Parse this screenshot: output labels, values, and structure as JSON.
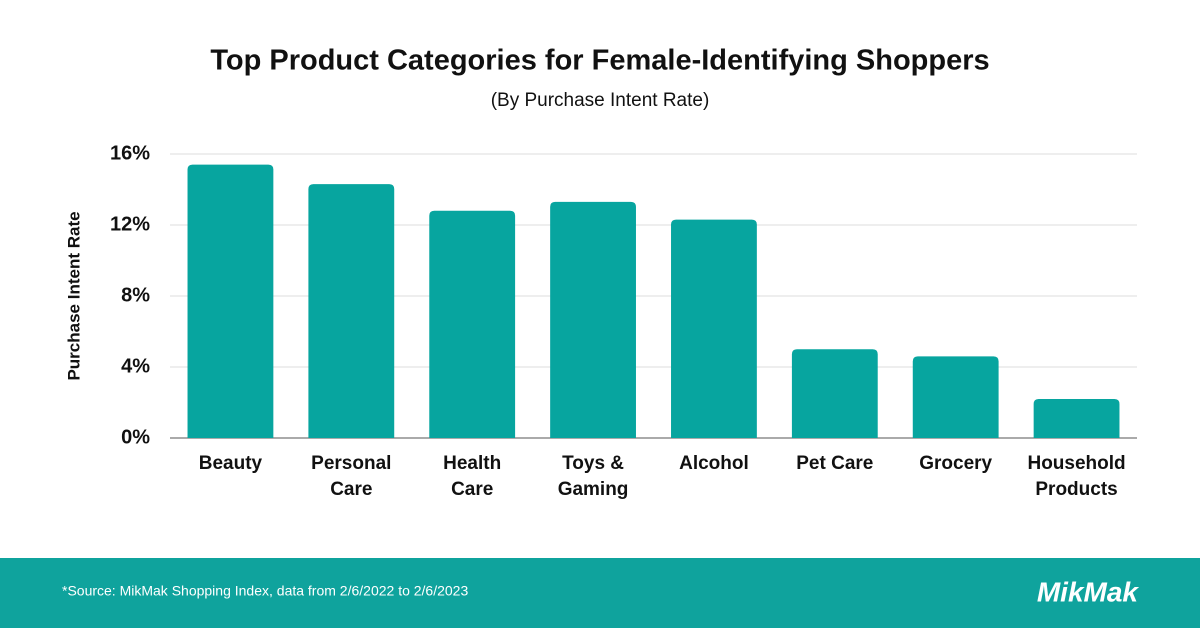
{
  "chart_data": {
    "type": "bar",
    "title": "Top Product Categories for Female-Identifying Shoppers",
    "subtitle": "(By Purchase Intent Rate)",
    "y_label": "Purchase Intent Rate",
    "categories": [
      [
        "Beauty"
      ],
      [
        "Personal",
        "Care"
      ],
      [
        "Health",
        "Care"
      ],
      [
        "Toys &",
        "Gaming"
      ],
      [
        "Alcohol"
      ],
      [
        "Pet Care"
      ],
      [
        "Grocery"
      ],
      [
        "Household",
        "Products"
      ]
    ],
    "values": [
      15.4,
      14.3,
      12.8,
      13.3,
      12.3,
      5.0,
      4.6,
      2.2
    ],
    "color": "#07a59f",
    "ylim": [
      0,
      16
    ],
    "yticks": [
      {
        "value": 0,
        "label": "0%"
      },
      {
        "value": 4,
        "label": "4%"
      },
      {
        "value": 8,
        "label": "8%"
      },
      {
        "value": 12,
        "label": "12%"
      },
      {
        "value": 16,
        "label": "16%"
      }
    ],
    "grid": true
  },
  "footer": {
    "source": "*Source: MikMak Shopping Index, data from 2/6/2022 to 2/6/2023",
    "logo": "MikMak"
  }
}
